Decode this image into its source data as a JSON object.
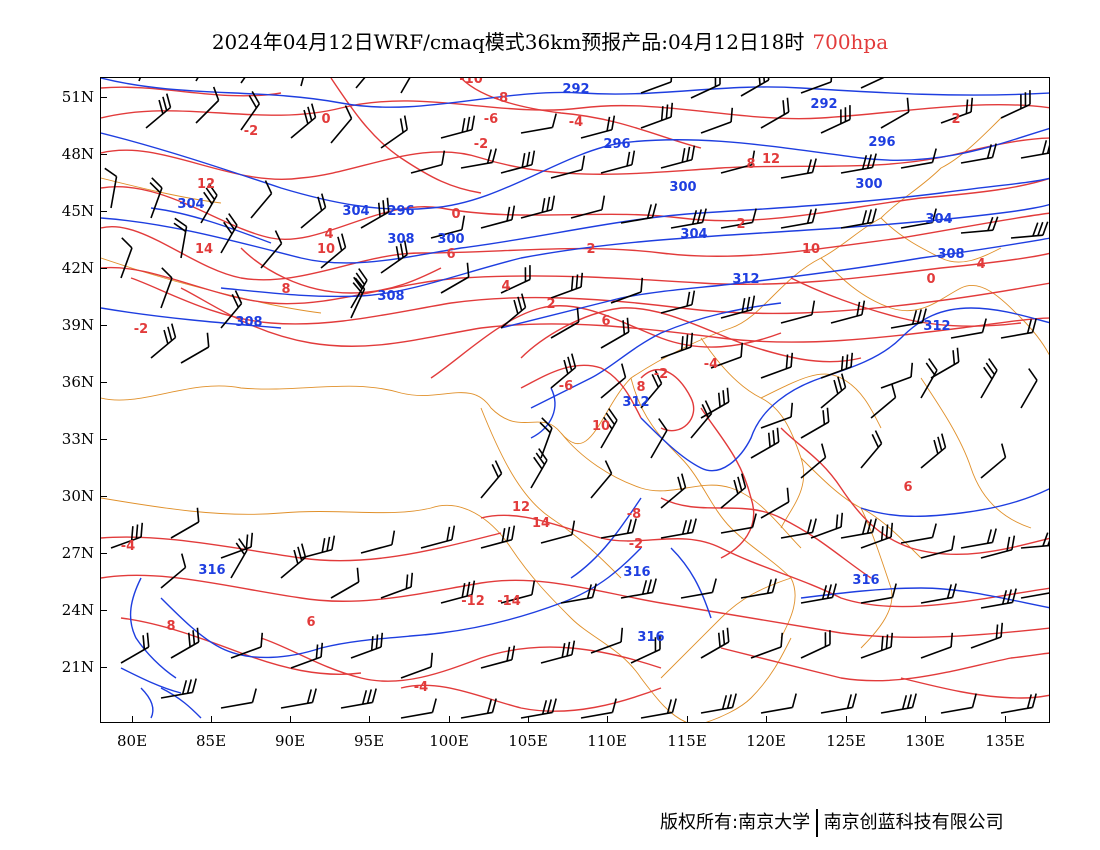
{
  "title": {
    "main": "2024年04月12日WRF/cmaq模式36km预报产品:04月12日18时",
    "level": "700hpa",
    "level_color": "#e23b3b"
  },
  "map": {
    "lon_labels": [
      "80E",
      "85E",
      "90E",
      "95E",
      "100E",
      "105E",
      "110E",
      "115E",
      "120E",
      "125E",
      "130E",
      "135E"
    ],
    "lat_labels": [
      "51N",
      "48N",
      "45N",
      "42N",
      "39N",
      "36N",
      "33N",
      "30N",
      "27N",
      "24N",
      "21N"
    ],
    "temperature_color": "#e23b3b",
    "height_color": "#1e3ee0",
    "border_color": "#e0902a",
    "wind_color": "#000000",
    "temperature_labels": [
      "-10",
      "-8",
      "-6",
      "-4",
      "-2",
      "0",
      "2",
      "4",
      "6",
      "8",
      "10",
      "12",
      "14",
      "-14",
      "-12",
      "-4",
      "-2",
      "0",
      "2",
      "4",
      "6",
      "8",
      "10",
      "12",
      "14",
      "8",
      "6",
      "-6",
      "-8",
      "-2",
      "-4",
      "-2",
      "2",
      "10",
      "12",
      "8",
      "6",
      "4",
      "2",
      "0",
      "-2",
      "-4"
    ],
    "height_labels": [
      "292",
      "292",
      "296",
      "296",
      "300",
      "300",
      "304",
      "304",
      "304",
      "308",
      "308",
      "308",
      "308",
      "312",
      "312",
      "312",
      "316",
      "316",
      "316",
      "316",
      "304",
      "300",
      "296"
    ]
  },
  "footer": {
    "left": "版权所有:南京大学",
    "right": "南京创蓝科技有限公司"
  }
}
